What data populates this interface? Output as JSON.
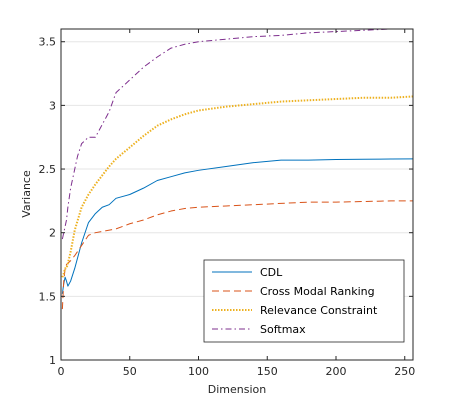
{
  "chart_data": {
    "type": "line",
    "title": "",
    "xlabel": "Dimension",
    "ylabel": "Variance",
    "xlim": [
      0,
      256
    ],
    "ylim": [
      1,
      3.6
    ],
    "xticks": [
      0,
      50,
      100,
      150,
      200,
      250
    ],
    "yticks": [
      1,
      1.5,
      2,
      2.5,
      3,
      3.5
    ],
    "ytick_labels": [
      "1",
      "1.5",
      "2",
      "2.5",
      "3",
      "3.5"
    ],
    "grid": "horizontal",
    "legend_position": "bottom-right",
    "series": [
      {
        "name": "CDL",
        "color": "#0072BD",
        "style": "solid",
        "x": [
          1,
          2,
          3,
          4,
          5,
          7,
          10,
          15,
          20,
          25,
          30,
          35,
          40,
          50,
          60,
          70,
          80,
          90,
          100,
          120,
          140,
          160,
          180,
          200,
          220,
          240,
          256
        ],
        "y": [
          1.52,
          1.6,
          1.65,
          1.62,
          1.58,
          1.62,
          1.72,
          1.92,
          2.08,
          2.15,
          2.2,
          2.22,
          2.27,
          2.3,
          2.35,
          2.41,
          2.44,
          2.47,
          2.49,
          2.52,
          2.55,
          2.57,
          2.57,
          2.575,
          2.577,
          2.579,
          2.58
        ]
      },
      {
        "name": "Cross Modal Ranking",
        "color": "#D95319",
        "style": "dashed",
        "x": [
          1,
          2,
          3,
          4,
          5,
          7,
          10,
          15,
          20,
          25,
          30,
          40,
          50,
          60,
          70,
          80,
          90,
          100,
          120,
          140,
          160,
          180,
          200,
          220,
          240,
          256
        ],
        "y": [
          1.4,
          1.62,
          1.72,
          1.75,
          1.76,
          1.78,
          1.82,
          1.9,
          1.98,
          2.0,
          2.01,
          2.03,
          2.07,
          2.1,
          2.14,
          2.17,
          2.19,
          2.2,
          2.21,
          2.22,
          2.23,
          2.24,
          2.24,
          2.245,
          2.25,
          2.25
        ]
      },
      {
        "name": "Relevance Constraint",
        "color": "#EDB120",
        "style": "dotted",
        "x": [
          1,
          2,
          3,
          4,
          5,
          7,
          10,
          15,
          20,
          25,
          30,
          35,
          40,
          50,
          60,
          70,
          80,
          90,
          100,
          120,
          140,
          160,
          180,
          200,
          220,
          240,
          256
        ],
        "y": [
          1.65,
          1.68,
          1.72,
          1.72,
          1.76,
          1.85,
          2.02,
          2.2,
          2.3,
          2.38,
          2.45,
          2.52,
          2.58,
          2.67,
          2.76,
          2.84,
          2.89,
          2.93,
          2.96,
          2.99,
          3.01,
          3.03,
          3.04,
          3.05,
          3.06,
          3.06,
          3.07
        ]
      },
      {
        "name": "Softmax",
        "color": "#7E2F8E",
        "style": "dashdot",
        "x": [
          1,
          2,
          3,
          4,
          5,
          7,
          10,
          12,
          15,
          20,
          25,
          30,
          35,
          40,
          50,
          60,
          70,
          80,
          90,
          100,
          120,
          140,
          160,
          180,
          200,
          220,
          240,
          256
        ],
        "y": [
          1.95,
          2.0,
          2.05,
          2.1,
          2.2,
          2.35,
          2.5,
          2.6,
          2.7,
          2.75,
          2.75,
          2.85,
          2.95,
          3.1,
          3.2,
          3.3,
          3.38,
          3.45,
          3.48,
          3.5,
          3.52,
          3.54,
          3.55,
          3.57,
          3.58,
          3.59,
          3.6,
          3.6
        ]
      }
    ]
  }
}
